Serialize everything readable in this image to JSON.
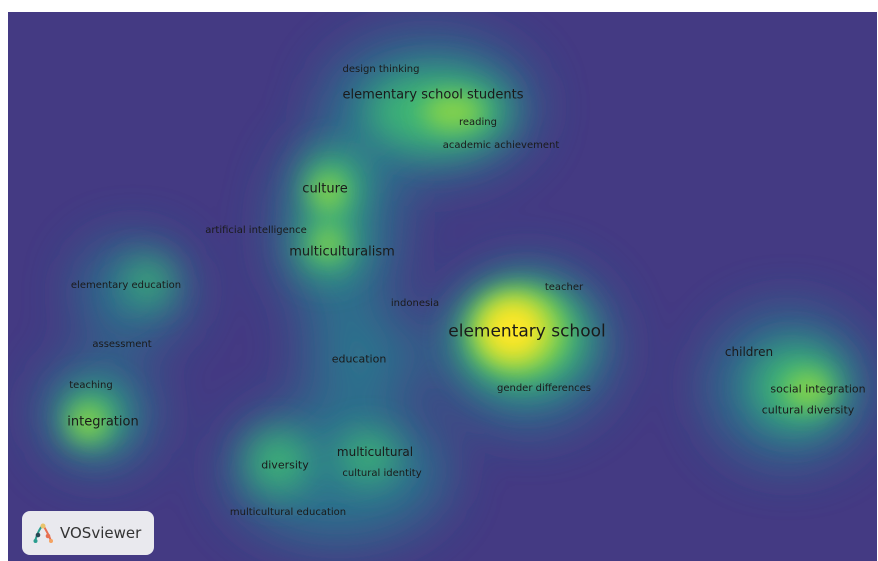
{
  "app": {
    "logo_label": "VOSviewer"
  },
  "colors": {
    "background": "#443a83",
    "density_low": "#443a83",
    "density_mid": "#21918c",
    "density_high": "#5ec962",
    "density_peak": "#fde725"
  },
  "terms": [
    {
      "id": "design-thinking",
      "label": "design thinking",
      "weight": "small"
    },
    {
      "id": "elementary-school-students",
      "label": "elementary school students",
      "weight": "medium"
    },
    {
      "id": "reading",
      "label": "reading",
      "weight": "small"
    },
    {
      "id": "academic-achievement",
      "label": "academic achievement",
      "weight": "small"
    },
    {
      "id": "culture",
      "label": "culture",
      "weight": "medium"
    },
    {
      "id": "artificial-intelligence",
      "label": "artificial intelligence",
      "weight": "small"
    },
    {
      "id": "multiculturalism",
      "label": "multiculturalism",
      "weight": "medium"
    },
    {
      "id": "elementary-education",
      "label": "elementary education",
      "weight": "small"
    },
    {
      "id": "indonesia",
      "label": "indonesia",
      "weight": "small"
    },
    {
      "id": "teacher",
      "label": "teacher",
      "weight": "small"
    },
    {
      "id": "elementary-school",
      "label": "elementary school",
      "weight": "large"
    },
    {
      "id": "assessment",
      "label": "assessment",
      "weight": "small"
    },
    {
      "id": "education",
      "label": "education",
      "weight": "small"
    },
    {
      "id": "children",
      "label": "children",
      "weight": "medium-small"
    },
    {
      "id": "teaching",
      "label": "teaching",
      "weight": "small"
    },
    {
      "id": "gender-differences",
      "label": "gender differences",
      "weight": "small"
    },
    {
      "id": "social-integration",
      "label": "social integration",
      "weight": "small"
    },
    {
      "id": "integration",
      "label": "integration",
      "weight": "medium"
    },
    {
      "id": "cultural-diversity",
      "label": "cultural diversity",
      "weight": "small"
    },
    {
      "id": "multicultural",
      "label": "multicultural",
      "weight": "medium-small"
    },
    {
      "id": "diversity",
      "label": "diversity",
      "weight": "small"
    },
    {
      "id": "cultural-identity",
      "label": "cultural identity",
      "weight": "small"
    },
    {
      "id": "multicultural-education",
      "label": "multicultural education",
      "weight": "small"
    }
  ]
}
